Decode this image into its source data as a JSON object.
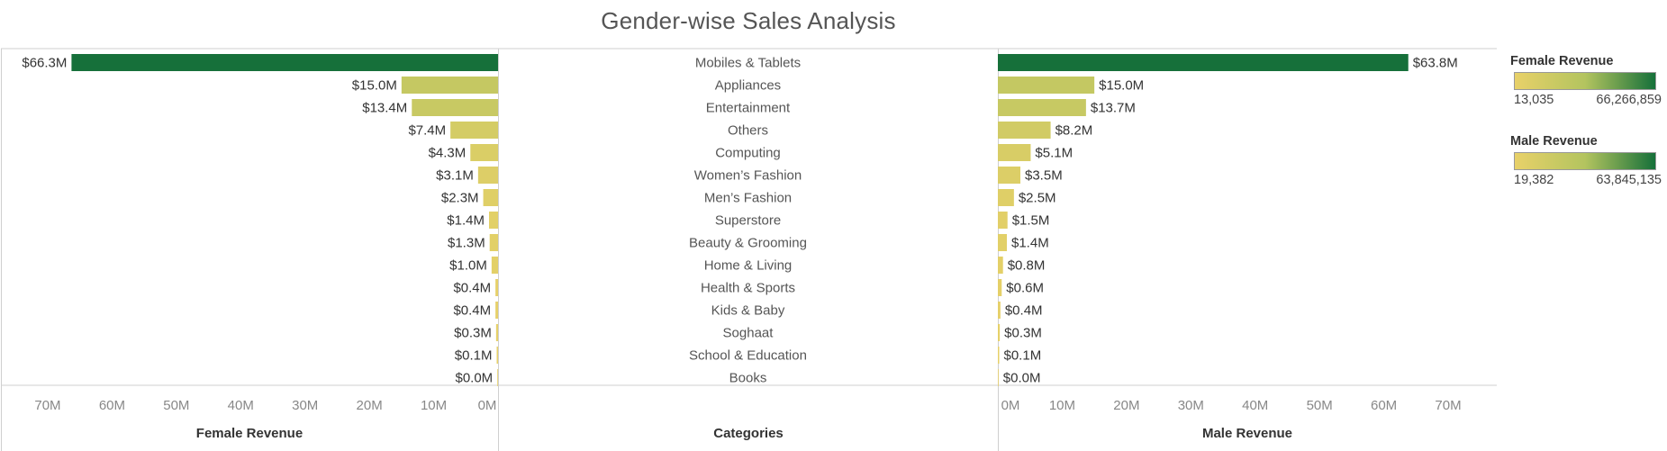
{
  "title": "Gender-wise Sales Analysis",
  "chart_data": {
    "type": "bar",
    "categories": [
      "Mobiles & Tablets",
      "Appliances",
      "Entertainment",
      "Others",
      "Computing",
      "Women’s Fashion",
      "Men’s Fashion",
      "Superstore",
      "Beauty & Grooming",
      "Home & Living",
      "Health & Sports",
      "Kids & Baby",
      "Soghaat",
      "School & Education",
      "Books"
    ],
    "category_axis_title": "Categories",
    "series": [
      {
        "name": "Female Revenue",
        "values_m": [
          66.3,
          15.0,
          13.4,
          7.4,
          4.3,
          3.1,
          2.3,
          1.4,
          1.3,
          1.0,
          0.4,
          0.4,
          0.3,
          0.1,
          0.0
        ],
        "labels": [
          "$66.3M",
          "$15.0M",
          "$13.4M",
          "$7.4M",
          "$4.3M",
          "$3.1M",
          "$2.3M",
          "$1.4M",
          "$1.3M",
          "$1.0M",
          "$0.4M",
          "$0.4M",
          "$0.3M",
          "$0.1M",
          "$0.0M"
        ],
        "axis_title": "Female Revenue",
        "orientation": "reversed",
        "ticks": [
          "70M",
          "60M",
          "50M",
          "40M",
          "30M",
          "20M",
          "10M",
          "0M"
        ]
      },
      {
        "name": "Male Revenue",
        "values_m": [
          63.8,
          15.0,
          13.7,
          8.2,
          5.1,
          3.5,
          2.5,
          1.5,
          1.4,
          0.8,
          0.6,
          0.4,
          0.3,
          0.1,
          0.0
        ],
        "labels": [
          "$63.8M",
          "$15.0M",
          "$13.7M",
          "$8.2M",
          "$5.1M",
          "$3.5M",
          "$2.5M",
          "$1.5M",
          "$1.4M",
          "$0.8M",
          "$0.6M",
          "$0.4M",
          "$0.3M",
          "$0.1M",
          "$0.0M"
        ],
        "axis_title": "Male Revenue",
        "orientation": "normal",
        "ticks": [
          "0M",
          "10M",
          "20M",
          "30M",
          "40M",
          "50M",
          "60M",
          "70M"
        ]
      }
    ],
    "xlim_m": [
      0,
      70
    ],
    "colors": {
      "low": "#e8d169",
      "mid": "#b3c45f",
      "high": "#16703a"
    },
    "legends": [
      {
        "title": "Female Revenue",
        "min": "13,035",
        "max": "66,266,859"
      },
      {
        "title": "Male Revenue",
        "min": "19,382",
        "max": "63,845,135"
      }
    ]
  }
}
